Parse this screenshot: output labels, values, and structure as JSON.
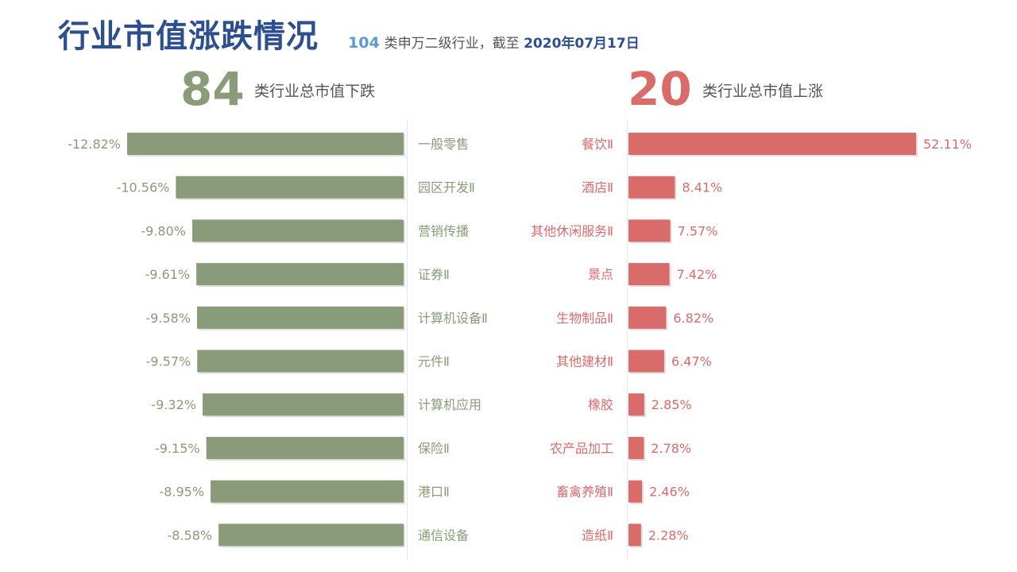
{
  "header": {
    "title": "行业市值涨跌情况",
    "subtitle_count": "104",
    "subtitle_text": "类申万二级行业，截至",
    "subtitle_date": "2020年07月17日"
  },
  "summary": {
    "down_count": "84",
    "down_label": "类行业总市值下跌",
    "up_count": "20",
    "up_label": "类行业总市值上涨"
  },
  "colors": {
    "down": "#899b78",
    "up": "#d96b6b",
    "title": "#2e4f8f",
    "accent": "#5b9bd5"
  },
  "chart_data": [
    {
      "type": "bar",
      "orientation": "horizontal",
      "name": "下跌",
      "categories": [
        "一般零售",
        "园区开发Ⅱ",
        "营销传播",
        "证券Ⅱ",
        "计算机设备Ⅱ",
        "元件Ⅱ",
        "计算机应用",
        "保险Ⅱ",
        "港口Ⅱ",
        "通信设备"
      ],
      "values": [
        -12.82,
        -10.56,
        -9.8,
        -9.61,
        -9.58,
        -9.57,
        -9.32,
        -9.15,
        -8.95,
        -8.58
      ],
      "labels": [
        "-12.82%",
        "-10.56%",
        "-9.80%",
        "-9.61%",
        "-9.58%",
        "-9.57%",
        "-9.32%",
        "-9.15%",
        "-8.95%",
        "-8.58%"
      ],
      "unit": "%"
    },
    {
      "type": "bar",
      "orientation": "horizontal",
      "name": "上涨",
      "categories": [
        "餐饮Ⅱ",
        "酒店Ⅱ",
        "其他休闲服务Ⅱ",
        "景点",
        "生物制品Ⅱ",
        "其他建材Ⅱ",
        "橡胶",
        "农产品加工",
        "畜禽养殖Ⅱ",
        "造纸Ⅱ"
      ],
      "values": [
        52.11,
        8.41,
        7.57,
        7.42,
        6.82,
        6.47,
        2.85,
        2.78,
        2.46,
        2.28
      ],
      "labels": [
        "52.11%",
        "8.41%",
        "7.57%",
        "7.42%",
        "6.82%",
        "6.47%",
        "2.85%",
        "2.78%",
        "2.46%",
        "2.28%"
      ],
      "unit": "%"
    }
  ]
}
